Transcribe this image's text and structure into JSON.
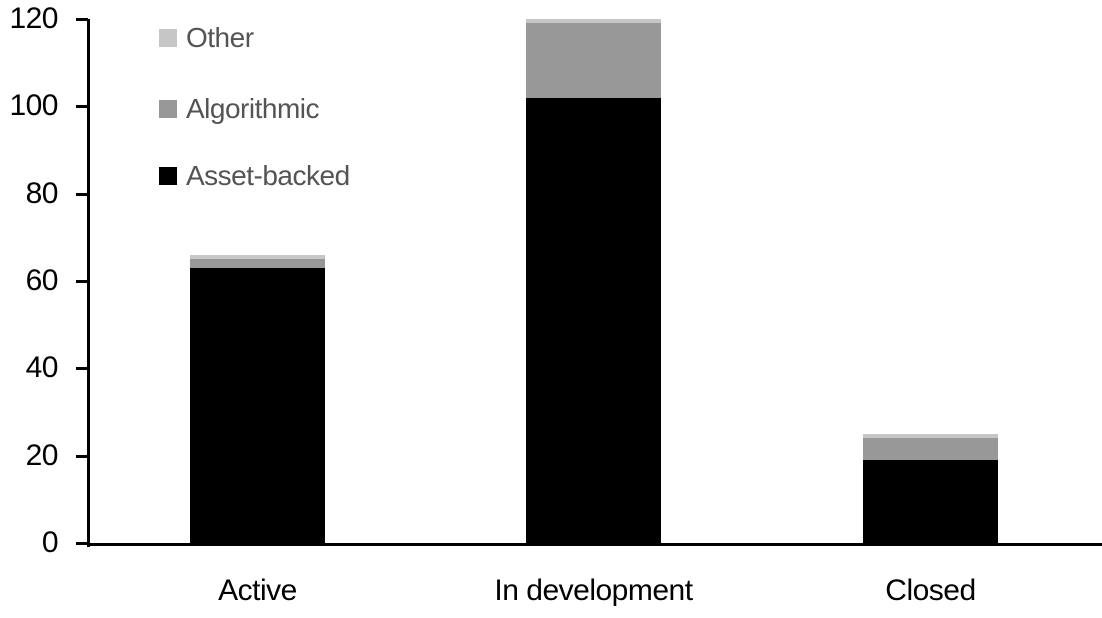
{
  "chart_data": {
    "type": "bar",
    "stacked": true,
    "title": "",
    "xlabel": "",
    "ylabel": "",
    "categories": [
      "Active",
      "In development",
      "Closed"
    ],
    "series": [
      {
        "name": "Asset-backed",
        "color": "#000000",
        "values": [
          63,
          102,
          19
        ]
      },
      {
        "name": "Algorithmic",
        "color": "#989898",
        "values": [
          2,
          17,
          5
        ]
      },
      {
        "name": "Other",
        "color": "#c6c6c6",
        "values": [
          1,
          1,
          1
        ]
      }
    ],
    "totals": [
      66,
      120,
      25
    ],
    "ylim": [
      0,
      120
    ],
    "yticks": [
      0,
      20,
      40,
      60,
      80,
      100,
      120
    ],
    "grid": false,
    "background": "#ffffff",
    "axis_color": "#000000",
    "tick_label_color": "#000000",
    "x_label_color": "#000000",
    "legend": {
      "position": "top-left",
      "order_top_to_bottom": [
        "Other",
        "Algorithmic",
        "Asset-backed"
      ],
      "text_color": "#545454"
    }
  }
}
